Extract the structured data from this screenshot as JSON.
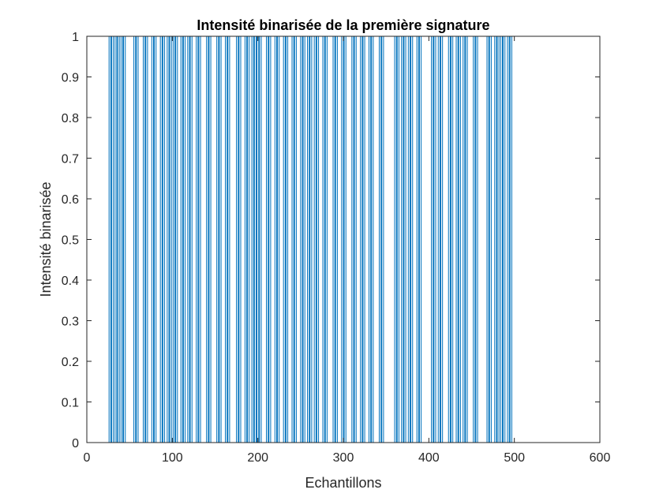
{
  "chart_data": {
    "type": "line",
    "title": "Intensité binarisée de la première signature",
    "xlabel": "Echantillons",
    "ylabel": "Intensité binarisée",
    "xlim": [
      0,
      600
    ],
    "ylim": [
      0,
      1
    ],
    "xticks": [
      0,
      100,
      200,
      300,
      400,
      500,
      600
    ],
    "yticks": [
      0,
      0.1,
      0.2,
      0.3,
      0.4,
      0.5,
      0.6,
      0.7,
      0.8,
      0.9,
      1
    ],
    "grid": false,
    "legend": false,
    "line_color": "#0072BD",
    "series": [
      {
        "x_start": 1,
        "x_end": 520,
        "base_value": 1,
        "zero_intervals": [
          [
            26,
            28
          ],
          [
            29,
            31
          ],
          [
            33,
            35
          ],
          [
            36,
            38
          ],
          [
            40,
            42
          ],
          [
            43,
            45
          ],
          [
            55,
            57
          ],
          [
            58,
            60
          ],
          [
            66,
            68
          ],
          [
            69,
            71
          ],
          [
            76,
            78
          ],
          [
            79,
            81
          ],
          [
            86,
            88
          ],
          [
            89,
            91
          ],
          [
            94,
            96
          ],
          [
            97,
            99
          ],
          [
            101,
            103
          ],
          [
            104,
            106
          ],
          [
            110,
            112
          ],
          [
            113,
            115
          ],
          [
            118,
            120
          ],
          [
            121,
            123
          ],
          [
            128,
            130
          ],
          [
            131,
            133
          ],
          [
            140,
            142
          ],
          [
            143,
            145
          ],
          [
            152,
            154
          ],
          [
            155,
            157
          ],
          [
            162,
            164
          ],
          [
            165,
            167
          ],
          [
            175,
            177
          ],
          [
            178,
            180
          ],
          [
            185,
            187
          ],
          [
            188,
            190
          ],
          [
            193,
            195
          ],
          [
            196,
            198
          ],
          [
            199,
            201
          ],
          [
            202,
            204
          ],
          [
            210,
            212
          ],
          [
            213,
            215
          ],
          [
            220,
            222
          ],
          [
            223,
            225
          ],
          [
            230,
            232
          ],
          [
            233,
            235
          ],
          [
            240,
            242
          ],
          [
            243,
            245
          ],
          [
            250,
            252
          ],
          [
            253,
            255
          ],
          [
            258,
            260
          ],
          [
            261,
            263
          ],
          [
            266,
            268
          ],
          [
            269,
            271
          ],
          [
            276,
            278
          ],
          [
            279,
            281
          ],
          [
            288,
            290
          ],
          [
            291,
            293
          ],
          [
            298,
            300
          ],
          [
            301,
            303
          ],
          [
            310,
            312
          ],
          [
            313,
            315
          ],
          [
            320,
            322
          ],
          [
            323,
            325
          ],
          [
            330,
            332
          ],
          [
            333,
            335
          ],
          [
            342,
            344
          ],
          [
            345,
            347
          ],
          [
            360,
            362
          ],
          [
            363,
            365
          ],
          [
            368,
            370
          ],
          [
            371,
            373
          ],
          [
            376,
            378
          ],
          [
            379,
            381
          ],
          [
            386,
            388
          ],
          [
            389,
            391
          ],
          [
            403,
            405
          ],
          [
            406,
            408
          ],
          [
            411,
            413
          ],
          [
            414,
            416
          ],
          [
            423,
            425
          ],
          [
            426,
            428
          ],
          [
            432,
            434
          ],
          [
            435,
            437
          ],
          [
            440,
            442
          ],
          [
            443,
            445
          ],
          [
            452,
            454
          ],
          [
            455,
            457
          ],
          [
            468,
            470
          ],
          [
            471,
            473
          ],
          [
            477,
            479
          ],
          [
            480,
            482
          ],
          [
            484,
            486
          ],
          [
            487,
            489
          ],
          [
            492,
            494
          ],
          [
            495,
            497
          ]
        ]
      }
    ]
  }
}
